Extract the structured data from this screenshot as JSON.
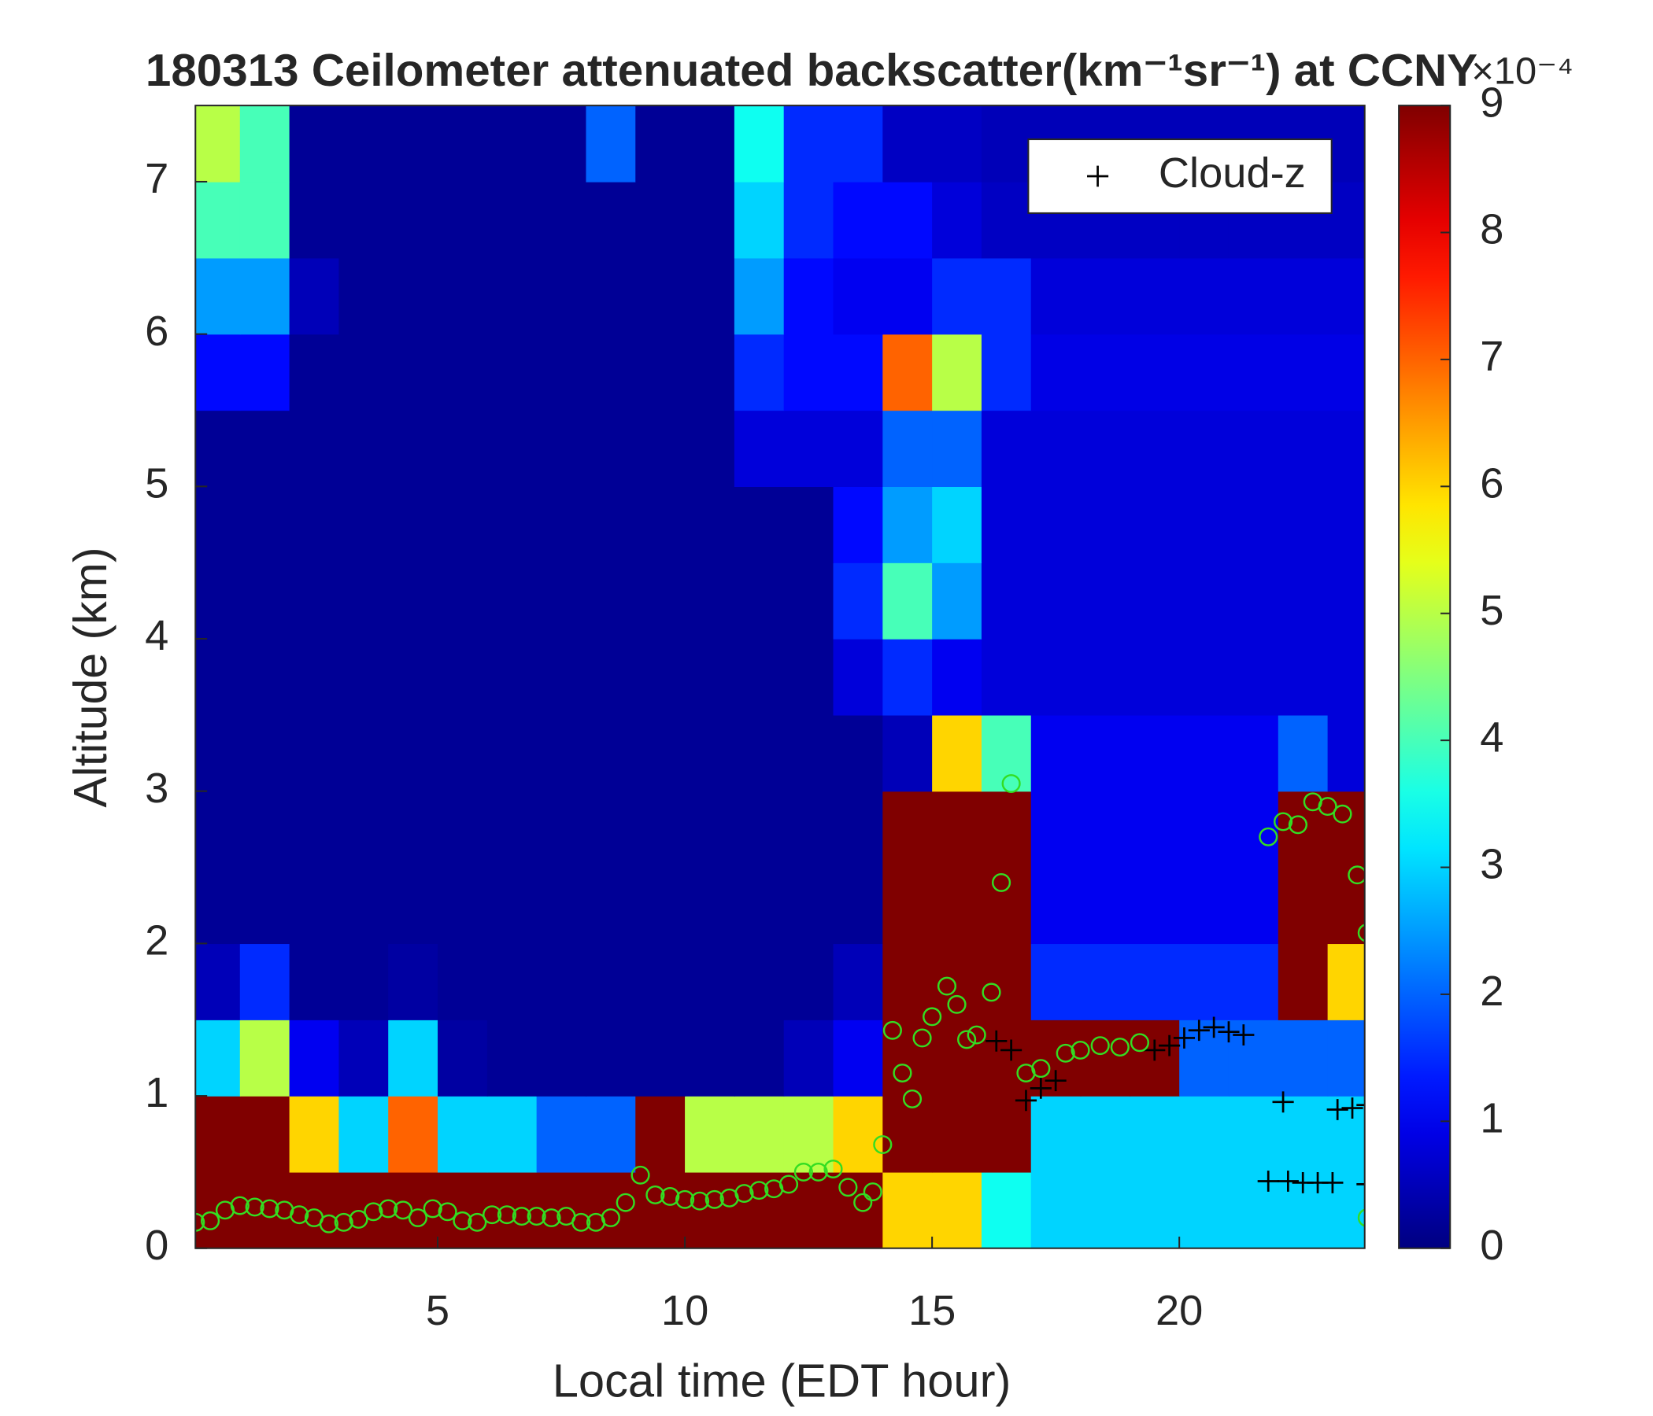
{
  "chart_data": {
    "type": "heatmap",
    "title": "180313 Ceilometer attenuated backscatter(km⁻¹sr⁻¹) at CCNY",
    "xlabel": "Local time (EDT hour)",
    "ylabel": "Altitude (km)",
    "xlim": [
      0.1,
      23.75
    ],
    "xticks": [
      5,
      10,
      15,
      20
    ],
    "ylim": [
      0,
      7.5
    ],
    "yticks": [
      0,
      1,
      2,
      3,
      4,
      5,
      6,
      7
    ],
    "clim": [
      0,
      9
    ],
    "cticks": [
      0,
      1,
      2,
      3,
      4,
      5,
      6,
      7,
      8,
      9
    ],
    "colorbar_label": "×10⁻⁴",
    "colormap": "jet",
    "xbins": [
      0,
      1,
      2,
      3,
      4,
      5,
      6,
      7,
      8,
      9,
      10,
      11,
      12,
      13,
      14,
      15,
      16,
      17,
      18,
      19,
      20,
      21,
      22,
      23,
      24
    ],
    "ybins": [
      0,
      0.5,
      1,
      1.5,
      2,
      2.5,
      3,
      3.5,
      4,
      4.5,
      5,
      5.5,
      6,
      6.5,
      7,
      7.5
    ],
    "z": [
      [
        12,
        12,
        12,
        12,
        12,
        12,
        12,
        12,
        12,
        12,
        12,
        12,
        12,
        12,
        6,
        6,
        3.5,
        3,
        3,
        3,
        3,
        3,
        3,
        3
      ],
      [
        12,
        12,
        6,
        3,
        7,
        3,
        3,
        2,
        2,
        9,
        5,
        5,
        5,
        6,
        12,
        12,
        9,
        3,
        3,
        3,
        3,
        3,
        3,
        3
      ],
      [
        3,
        5,
        1,
        0.5,
        3,
        0.3,
        0.2,
        0.2,
        0.2,
        0.2,
        0.2,
        0.2,
        0.5,
        1,
        12,
        12,
        12,
        9,
        12,
        12,
        2,
        2,
        2,
        2
      ],
      [
        0.5,
        1.5,
        0.2,
        0.2,
        0.3,
        0.2,
        0.2,
        0.2,
        0.2,
        0.2,
        0.2,
        0.2,
        0.2,
        0.5,
        12,
        12,
        12,
        1.5,
        1.5,
        1.5,
        1.5,
        1.5,
        12,
        6
      ],
      [
        0.2,
        0.2,
        0.2,
        0.2,
        0.2,
        0.2,
        0.2,
        0.2,
        0.2,
        0.2,
        0.2,
        0.2,
        0.2,
        0.2,
        12,
        12,
        12,
        1,
        1,
        1,
        1,
        1,
        12,
        12
      ],
      [
        0.2,
        0.2,
        0.2,
        0.2,
        0.2,
        0.2,
        0.2,
        0.2,
        0.2,
        0.2,
        0.2,
        0.2,
        0.2,
        0.2,
        10,
        12,
        12,
        1,
        1,
        1,
        1,
        1,
        12,
        9
      ],
      [
        0.2,
        0.2,
        0.2,
        0.2,
        0.2,
        0.2,
        0.2,
        0.2,
        0.2,
        0.2,
        0.2,
        0.2,
        0.2,
        0.2,
        0.5,
        6,
        4,
        1,
        1,
        1,
        1,
        1,
        2,
        0.8
      ],
      [
        0.2,
        0.2,
        0.2,
        0.2,
        0.2,
        0.2,
        0.2,
        0.2,
        0.2,
        0.2,
        0.2,
        0.2,
        0.2,
        0.8,
        1.5,
        1,
        0.8,
        0.8,
        0.8,
        0.8,
        0.8,
        0.8,
        0.8,
        0.8
      ],
      [
        0.2,
        0.2,
        0.2,
        0.2,
        0.2,
        0.2,
        0.2,
        0.2,
        0.2,
        0.2,
        0.2,
        0.2,
        0.2,
        1.5,
        4,
        2.5,
        0.8,
        0.8,
        0.8,
        0.8,
        0.8,
        0.8,
        0.8,
        0.8
      ],
      [
        0.2,
        0.2,
        0.2,
        0.2,
        0.2,
        0.2,
        0.2,
        0.2,
        0.2,
        0.2,
        0.2,
        0.2,
        0.2,
        1.2,
        2.5,
        3,
        0.8,
        0.8,
        0.8,
        0.8,
        0.8,
        0.8,
        0.8,
        0.8
      ],
      [
        0.2,
        0.2,
        0.2,
        0.2,
        0.2,
        0.2,
        0.2,
        0.2,
        0.2,
        0.2,
        0.2,
        0.8,
        0.8,
        0.8,
        2,
        2,
        0.8,
        0.8,
        0.8,
        0.8,
        0.8,
        0.8,
        0.8,
        0.8
      ],
      [
        1.2,
        1.2,
        0.2,
        0.2,
        0.2,
        0.2,
        0.2,
        0.2,
        0.2,
        0.2,
        0.2,
        1.5,
        1.2,
        1.2,
        7,
        5,
        1.5,
        0.9,
        0.9,
        0.9,
        0.9,
        0.9,
        0.9,
        0.9
      ],
      [
        2.5,
        2.5,
        0.5,
        0.2,
        0.2,
        0.2,
        0.2,
        0.2,
        0.2,
        0.2,
        0.2,
        2.5,
        1.2,
        1,
        1,
        1.5,
        1.5,
        0.8,
        0.8,
        0.8,
        0.8,
        0.8,
        0.8,
        0.8
      ],
      [
        4,
        4,
        0.2,
        0.2,
        0.2,
        0.2,
        0.2,
        0.2,
        0.2,
        0.2,
        0.2,
        3,
        1.5,
        1.2,
        1.2,
        0.8,
        0.6,
        0.6,
        0.6,
        0.6,
        0.6,
        0.6,
        0.6,
        0.6
      ],
      [
        5,
        4,
        0.2,
        0.2,
        0.2,
        0.2,
        0.2,
        0.2,
        2,
        0.2,
        0.2,
        3.5,
        1.5,
        1.5,
        0.6,
        0.6,
        0.5,
        0.5,
        0.5,
        0.5,
        0.5,
        0.5,
        0.5,
        0.5
      ]
    ],
    "series": [
      {
        "name": "Cloud-z",
        "color": "#000000",
        "marker": "+",
        "x": [
          16.3,
          16.6,
          16.9,
          17.2,
          17.5,
          19.5,
          19.8,
          20.1,
          20.4,
          20.7,
          21.0,
          21.3,
          22.1,
          21.8,
          22.2,
          22.5,
          22.8,
          23.1,
          23.2,
          23.5,
          23.8,
          23.8
        ],
        "values": [
          1.36,
          1.3,
          0.97,
          1.05,
          1.1,
          1.3,
          1.33,
          1.38,
          1.43,
          1.45,
          1.42,
          1.4,
          0.96,
          0.44,
          0.44,
          0.43,
          0.43,
          0.43,
          0.91,
          0.92,
          0.94,
          0.42
        ]
      },
      {
        "color": "#33dd22",
        "marker": "o",
        "x": [
          0.1,
          0.4,
          0.7,
          1.0,
          1.3,
          1.6,
          1.9,
          2.2,
          2.5,
          2.8,
          3.1,
          3.4,
          3.7,
          4.0,
          4.3,
          4.6,
          4.9,
          5.2,
          5.5,
          5.8,
          6.1,
          6.4,
          6.7,
          7.0,
          7.3,
          7.6,
          7.9,
          8.2,
          8.5,
          8.8,
          9.1,
          9.4,
          9.7,
          10.0,
          10.3,
          10.6,
          10.9,
          11.2,
          11.5,
          11.8,
          12.1,
          12.4,
          12.7,
          13.0,
          13.3,
          13.6,
          13.8,
          14.0,
          14.2,
          14.4,
          14.6,
          14.8,
          15.0,
          15.3,
          15.5,
          15.7,
          15.9,
          16.2,
          16.4,
          16.6,
          16.9,
          17.2,
          17.7,
          18.0,
          18.4,
          18.8,
          19.2,
          21.8,
          22.1,
          22.4,
          22.7,
          23.0,
          23.3,
          23.6,
          23.8,
          23.8
        ],
        "values": [
          0.17,
          0.18,
          0.25,
          0.28,
          0.27,
          0.26,
          0.25,
          0.22,
          0.2,
          0.16,
          0.17,
          0.19,
          0.24,
          0.26,
          0.25,
          0.2,
          0.26,
          0.24,
          0.18,
          0.17,
          0.22,
          0.22,
          0.21,
          0.21,
          0.2,
          0.21,
          0.17,
          0.17,
          0.2,
          0.3,
          0.48,
          0.35,
          0.34,
          0.32,
          0.31,
          0.32,
          0.33,
          0.36,
          0.38,
          0.39,
          0.42,
          0.5,
          0.5,
          0.52,
          0.4,
          0.3,
          0.37,
          0.68,
          1.43,
          1.15,
          0.98,
          1.38,
          1.52,
          1.72,
          1.6,
          1.37,
          1.4,
          1.68,
          2.4,
          3.05,
          1.15,
          1.18,
          1.28,
          1.3,
          1.33,
          1.32,
          1.35,
          2.7,
          2.8,
          2.78,
          2.93,
          2.9,
          2.85,
          2.45,
          2.07,
          0.2
        ]
      }
    ],
    "legend": "upper right"
  }
}
